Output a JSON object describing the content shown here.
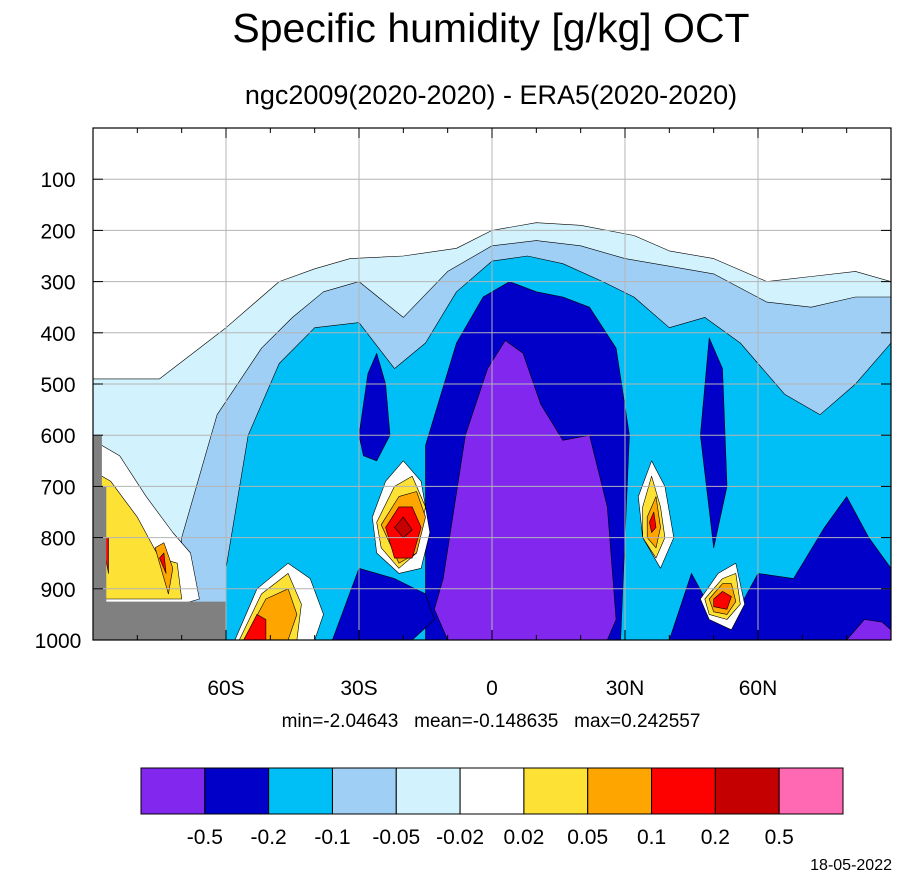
{
  "chart_data": {
    "type": "contour",
    "title": "Specific humidity [g/kg] OCT",
    "subtitle": "ngc2009(2020-2020) - ERA5(2020-2020)",
    "stats_text": "min=-2.04643   mean=-0.148635   max=0.242557",
    "date_text": "18-05-2022",
    "x_axis": {
      "range": [
        -90,
        90
      ],
      "ticks": [
        -60,
        -30,
        0,
        30,
        60
      ],
      "tick_labels": [
        "60S",
        "30S",
        "0",
        "30N",
        "60N"
      ]
    },
    "y_axis": {
      "range": [
        1000,
        0
      ],
      "ticks": [
        100,
        200,
        300,
        400,
        500,
        600,
        700,
        800,
        900,
        1000
      ],
      "tick_labels": [
        "100",
        "200",
        "300",
        "400",
        "500",
        "600",
        "700",
        "800",
        "900",
        "1000"
      ]
    },
    "grid": true,
    "missing_color": "#808080",
    "colorbar": {
      "levels": [
        -0.5,
        -0.2,
        -0.1,
        -0.05,
        -0.02,
        0.02,
        0.05,
        0.1,
        0.2,
        0.5
      ],
      "level_labels": [
        "-0.5",
        "-0.2",
        "-0.1",
        "-0.05",
        "-0.02",
        "0.02",
        "0.05",
        "0.1",
        "0.2",
        "0.5"
      ],
      "colors": [
        "#8228ee",
        "#0000c8",
        "#00bff7",
        "#a0cff6",
        "#d2f3fd",
        "#ffffff",
        "#fde135",
        "#fea500",
        "#fd0000",
        "#c40000",
        "#ff69b4"
      ]
    },
    "regions": [
      {
        "name": "mid-trop-dry-0.02",
        "color_index": 4,
        "lat": [
          -90,
          -75,
          -60,
          -48,
          -40,
          -32,
          -20,
          -8,
          0,
          10,
          20,
          32,
          40,
          50,
          62,
          72,
          82,
          90,
          90,
          82,
          72,
          62,
          50,
          40,
          30,
          20,
          10,
          0,
          -10,
          -20,
          -30,
          -40,
          -50,
          -60,
          -70,
          -78,
          -85,
          -90
        ],
        "p": [
          490,
          490,
          390,
          300,
          275,
          255,
          250,
          235,
          200,
          185,
          190,
          210,
          240,
          255,
          300,
          290,
          280,
          300,
          1000,
          1000,
          1000,
          1000,
          1000,
          1000,
          1000,
          1000,
          1000,
          1000,
          1000,
          1000,
          1000,
          1000,
          1000,
          1000,
          1000,
          1000,
          1000,
          1000
        ]
      },
      {
        "name": "mid-trop-dry-0.05",
        "color_index": 3,
        "lat": [
          -70,
          -62,
          -52,
          -45,
          -38,
          -30,
          -20,
          -10,
          0,
          10,
          20,
          30,
          40,
          50,
          62,
          72,
          82,
          90,
          90,
          70,
          50,
          30,
          10,
          -10,
          -30,
          -50,
          -70
        ],
        "p": [
          800,
          560,
          430,
          370,
          320,
          300,
          370,
          280,
          230,
          220,
          230,
          255,
          270,
          285,
          340,
          350,
          330,
          330,
          1000,
          1000,
          1000,
          1000,
          1000,
          1000,
          1000,
          1000,
          1000
        ]
      },
      {
        "name": "mid-trop-dry-0.1",
        "color_index": 2,
        "lat": [
          -60,
          -55,
          -48,
          -40,
          -30,
          -22,
          -15,
          -8,
          0,
          8,
          16,
          25,
          32,
          40,
          48,
          56,
          66,
          74,
          82,
          90,
          90,
          70,
          50,
          30,
          10,
          -10,
          -30,
          -50,
          -60
        ],
        "p": [
          860,
          600,
          460,
          390,
          380,
          470,
          420,
          320,
          260,
          250,
          265,
          300,
          330,
          390,
          370,
          420,
          520,
          560,
          500,
          420,
          1000,
          1000,
          1000,
          1000,
          1000,
          1000,
          1000,
          1000,
          1000
        ]
      },
      {
        "name": "tropical-dry-0.2",
        "color_index": 1,
        "lat": [
          -15,
          -8,
          -2,
          4,
          10,
          16,
          22,
          28,
          31,
          29,
          20,
          10,
          0,
          -10,
          -15
        ],
        "p": [
          620,
          420,
          330,
          300,
          320,
          330,
          350,
          430,
          600,
          1000,
          1000,
          1000,
          1000,
          1000,
          1000
        ]
      },
      {
        "name": "tropical-dry-0.5",
        "color_index": 0,
        "lat": [
          -11,
          -6,
          -1,
          3,
          7,
          11,
          16,
          22,
          26,
          28,
          26,
          20,
          10,
          0,
          -10,
          -13
        ],
        "p": [
          880,
          600,
          470,
          415,
          440,
          540,
          610,
          600,
          740,
          960,
          1000,
          1000,
          1000,
          1000,
          1000,
          940
        ]
      },
      {
        "name": "sh-low-dry-0.2",
        "color_index": 1,
        "lat": [
          -36,
          -30,
          -22,
          -15,
          -13,
          -18,
          -26,
          -34,
          -36
        ],
        "p": [
          1000,
          860,
          880,
          910,
          960,
          1000,
          1000,
          1000,
          1000
        ]
      },
      {
        "name": "sh-mid-dry-0.2",
        "color_index": 1,
        "lat": [
          -30,
          -28,
          -26,
          -24,
          -23,
          -26,
          -29,
          -30
        ],
        "p": [
          600,
          480,
          440,
          500,
          600,
          650,
          640,
          600
        ]
      },
      {
        "name": "nh-dry-0.2",
        "color_index": 1,
        "lat": [
          40,
          45,
          50,
          55,
          60,
          68,
          75,
          80,
          85,
          90,
          90,
          40
        ],
        "p": [
          1000,
          870,
          950,
          950,
          870,
          880,
          780,
          720,
          800,
          860,
          1000,
          1000
        ]
      },
      {
        "name": "nh-mid-dry-0.2",
        "color_index": 1,
        "lat": [
          47,
          49,
          52,
          53,
          50,
          47
        ],
        "p": [
          600,
          410,
          470,
          700,
          820,
          600
        ]
      },
      {
        "name": "sh-moist-0.02",
        "color_index": 5,
        "lat": [
          -27,
          -24,
          -20,
          -16,
          -14,
          -16,
          -21,
          -26,
          -27
        ],
        "p": [
          760,
          690,
          650,
          690,
          790,
          860,
          870,
          830,
          760
        ]
      },
      {
        "name": "sh-moist-0.05",
        "color_index": 6,
        "lat": [
          -26,
          -22,
          -18,
          -15,
          -17,
          -21,
          -25,
          -26
        ],
        "p": [
          770,
          700,
          680,
          740,
          830,
          860,
          820,
          770
        ]
      },
      {
        "name": "sh-moist-0.1",
        "color_index": 7,
        "lat": [
          -25,
          -21,
          -17,
          -15,
          -17,
          -21,
          -25
        ],
        "p": [
          775,
          720,
          710,
          760,
          830,
          850,
          775
        ]
      },
      {
        "name": "sh-moist-0.2",
        "color_index": 8,
        "lat": [
          -24,
          -21,
          -18,
          -16,
          -18,
          -22,
          -24
        ],
        "p": [
          780,
          740,
          740,
          780,
          840,
          840,
          780
        ]
      },
      {
        "name": "sh-moist-0.5",
        "color_index": 9,
        "lat": [
          -22,
          -20,
          -18,
          -20,
          -22
        ],
        "p": [
          780,
          760,
          785,
          800,
          780
        ]
      },
      {
        "name": "nh-moist-0.02",
        "color_index": 5,
        "lat": [
          33,
          36,
          39,
          41,
          38,
          34,
          33
        ],
        "p": [
          720,
          650,
          700,
          800,
          860,
          800,
          720
        ]
      },
      {
        "name": "nh-moist-0.05",
        "color_index": 6,
        "lat": [
          34,
          36,
          38,
          39,
          37,
          34,
          34
        ],
        "p": [
          740,
          680,
          740,
          800,
          840,
          800,
          740
        ]
      },
      {
        "name": "nh-moist-0.1",
        "color_index": 7,
        "lat": [
          35,
          37,
          38,
          37,
          35,
          35
        ],
        "p": [
          760,
          720,
          780,
          820,
          800,
          760
        ]
      },
      {
        "name": "nh-moist-0.2",
        "color_index": 8,
        "lat": [
          35.5,
          36.5,
          37,
          36,
          35.5
        ],
        "p": [
          770,
          750,
          780,
          790,
          770
        ]
      },
      {
        "name": "nh-low-moist-0.02",
        "color_index": 5,
        "lat": [
          47,
          51,
          55,
          57,
          54,
          49,
          47
        ],
        "p": [
          920,
          870,
          850,
          930,
          980,
          960,
          920
        ]
      },
      {
        "name": "nh-low-moist-0.05",
        "color_index": 6,
        "lat": [
          48,
          52,
          55,
          56,
          53,
          49,
          48
        ],
        "p": [
          920,
          880,
          870,
          930,
          960,
          950,
          920
        ]
      },
      {
        "name": "nh-low-moist-0.1",
        "color_index": 7,
        "lat": [
          49,
          52,
          54,
          55,
          53,
          50,
          49
        ],
        "p": [
          920,
          890,
          890,
          925,
          950,
          945,
          920
        ]
      },
      {
        "name": "nh-low-moist-0.2",
        "color_index": 8,
        "lat": [
          50,
          52,
          54,
          53,
          50,
          50
        ],
        "p": [
          920,
          905,
          915,
          940,
          935,
          920
        ]
      },
      {
        "name": "sh-sfc-moist-0.02",
        "color_index": 5,
        "lat": [
          -58,
          -53,
          -46,
          -41,
          -38,
          -40,
          -46,
          -55,
          -58
        ],
        "p": [
          1000,
          900,
          850,
          880,
          950,
          1000,
          1000,
          1000,
          1000
        ]
      },
      {
        "name": "sh-sfc-moist-0.05",
        "color_index": 6,
        "lat": [
          -57,
          -52,
          -46,
          -43,
          -44,
          -50,
          -57
        ],
        "p": [
          1000,
          910,
          870,
          930,
          1000,
          1000,
          1000
        ]
      },
      {
        "name": "sh-sfc-moist-0.1",
        "color_index": 7,
        "lat": [
          -56,
          -51,
          -46,
          -44,
          -46,
          -55,
          -56
        ],
        "p": [
          1000,
          920,
          900,
          950,
          1000,
          1000,
          1000
        ]
      },
      {
        "name": "sh-sfc-moist-0.2",
        "color_index": 8,
        "lat": [
          -56,
          -53,
          -51,
          -51,
          -55,
          -56
        ],
        "p": [
          1000,
          950,
          960,
          1000,
          1000,
          1000
        ]
      },
      {
        "name": "ant-moist-0.02",
        "color_index": 5,
        "lat": [
          -90,
          -84,
          -78,
          -72,
          -68,
          -66,
          -70,
          -76,
          -84,
          -90
        ],
        "p": [
          610,
          640,
          720,
          790,
          830,
          920,
          930,
          930,
          930,
          930
        ]
      },
      {
        "name": "ant-moist-0.05",
        "color_index": 6,
        "lat": [
          -90,
          -86,
          -80,
          -75,
          -71,
          -70,
          -76,
          -84,
          -90
        ],
        "p": [
          670,
          690,
          760,
          840,
          850,
          920,
          920,
          920,
          920
        ]
      },
      {
        "name": "ant-moist-0.1",
        "color_index": 7,
        "lat": [
          -76,
          -74,
          -72,
          -73,
          -76
        ],
        "p": [
          820,
          810,
          860,
          910,
          820
        ]
      },
      {
        "name": "ant-moist-0.2",
        "color_index": 8,
        "lat": [
          -75,
          -74,
          -73.5,
          -75
        ],
        "p": [
          840,
          830,
          870,
          840
        ]
      },
      {
        "name": "ant-moist-0.2-west",
        "color_index": 8,
        "lat": [
          -88,
          -86.5,
          -86.5,
          -88
        ],
        "p": [
          800,
          800,
          870,
          800
        ]
      },
      {
        "name": "nh-sfc-dry-0.5",
        "color_index": 0,
        "lat": [
          80,
          84,
          88,
          90,
          90,
          80
        ],
        "p": [
          1000,
          960,
          965,
          980,
          1000,
          1000
        ]
      }
    ],
    "missing_regions": [
      {
        "lat": [
          -90,
          -88,
          -88,
          -87,
          -87,
          -60,
          -60,
          -90
        ],
        "p": [
          600,
          600,
          700,
          700,
          925,
          925,
          1000,
          1000
        ]
      }
    ]
  }
}
